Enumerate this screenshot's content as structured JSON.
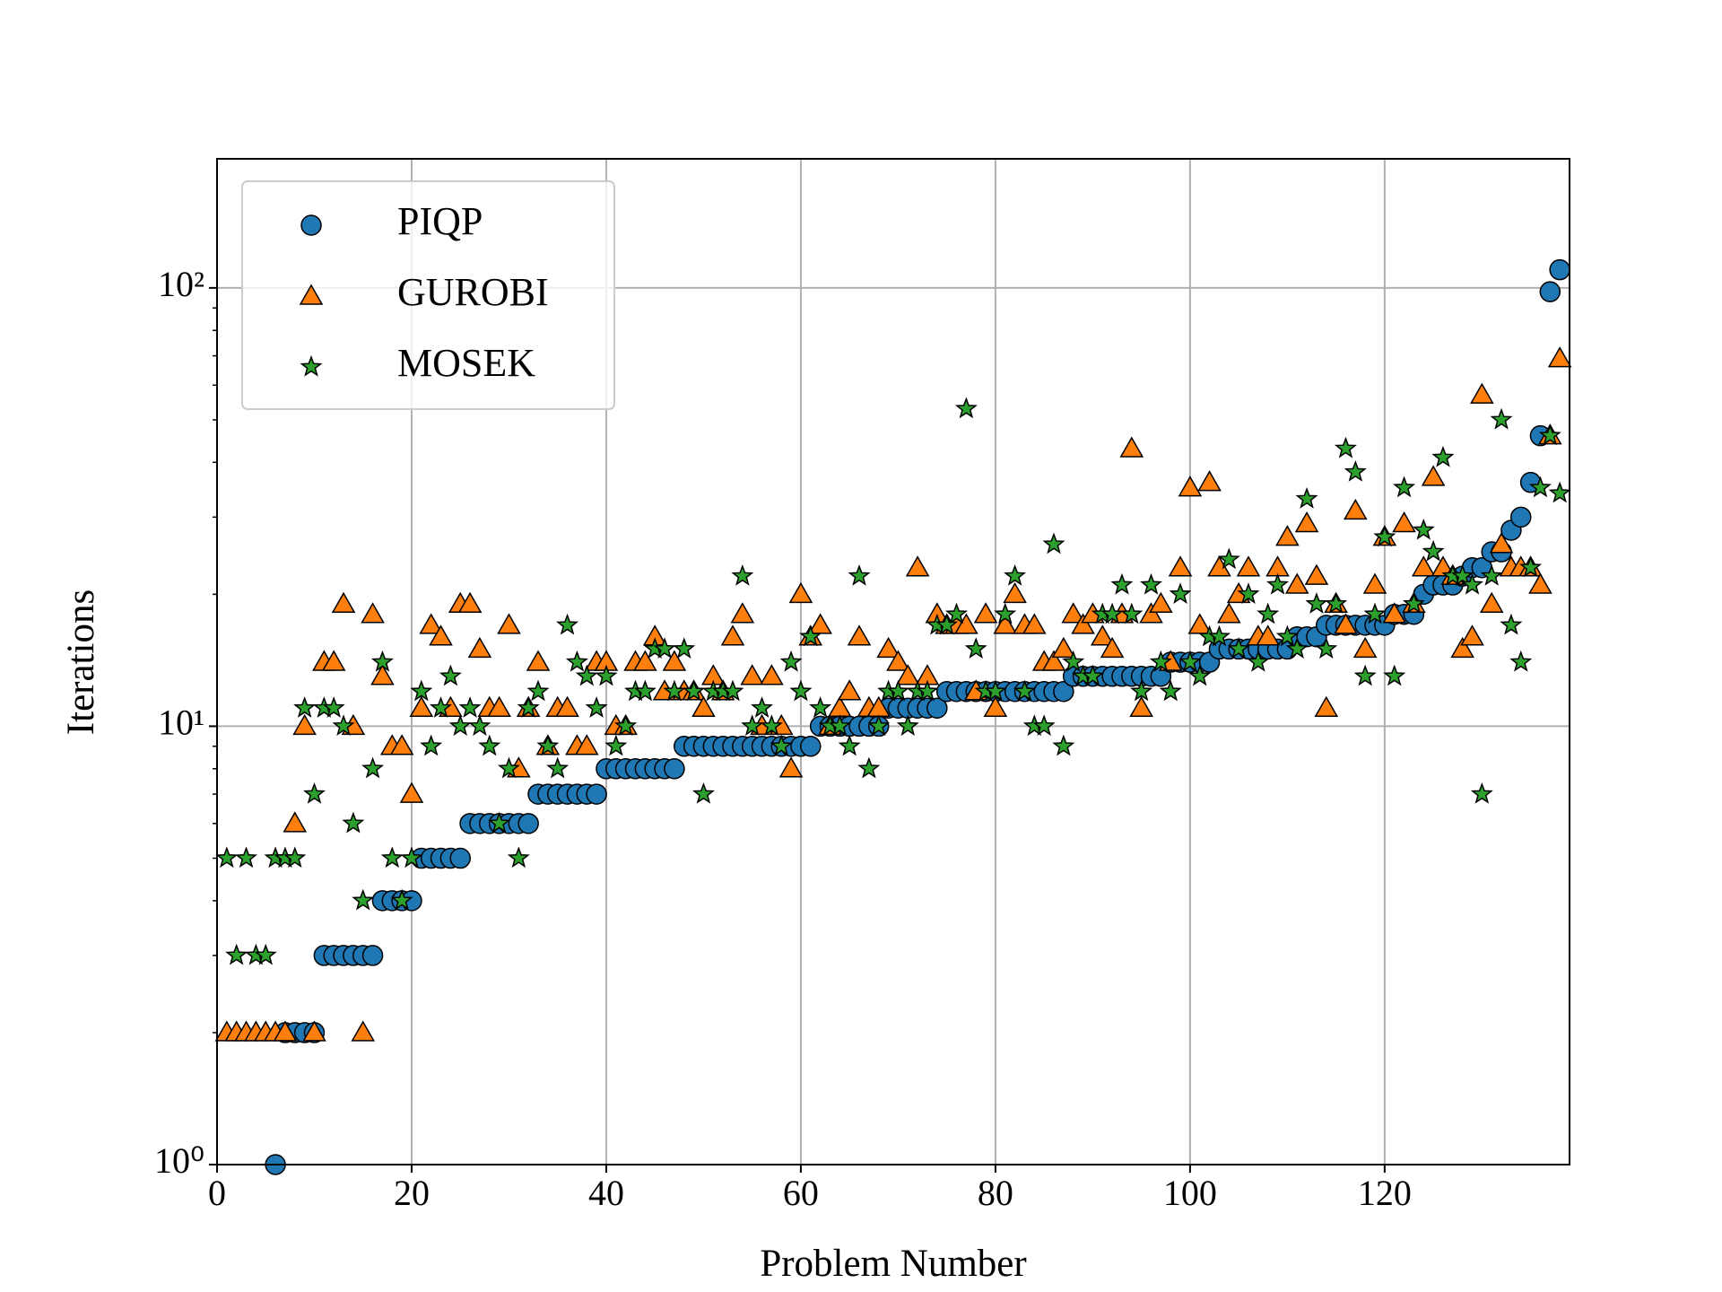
{
  "chart_data": {
    "type": "scatter",
    "xlabel": "Problem Number",
    "ylabel": "Iterations",
    "x": [
      1,
      2,
      3,
      4,
      5,
      6,
      7,
      8,
      9,
      10,
      11,
      12,
      13,
      14,
      15,
      16,
      17,
      18,
      19,
      20,
      21,
      22,
      23,
      24,
      25,
      26,
      27,
      28,
      29,
      30,
      31,
      32,
      33,
      34,
      35,
      36,
      37,
      38,
      39,
      40,
      41,
      42,
      43,
      44,
      45,
      46,
      47,
      48,
      49,
      50,
      51,
      52,
      53,
      54,
      55,
      56,
      57,
      58,
      59,
      60,
      61,
      62,
      63,
      64,
      65,
      66,
      67,
      68,
      69,
      70,
      71,
      72,
      73,
      74,
      75,
      76,
      77,
      78,
      79,
      80,
      81,
      82,
      83,
      84,
      85,
      86,
      87,
      88,
      89,
      90,
      91,
      92,
      93,
      94,
      95,
      96,
      97,
      98,
      99,
      100,
      101,
      102,
      103,
      104,
      105,
      106,
      107,
      108,
      109,
      110,
      111,
      112,
      113,
      114,
      115,
      116,
      117,
      118,
      119,
      120,
      121,
      122,
      123,
      124,
      125,
      126,
      127,
      128,
      129,
      130,
      131,
      132,
      133,
      134,
      135,
      136,
      137,
      138
    ],
    "series": [
      {
        "name": "PIQP",
        "color": "#1f77b4",
        "marker": "circle",
        "values": [
          null,
          null,
          null,
          null,
          null,
          1,
          2,
          2,
          2,
          2,
          3,
          3,
          3,
          3,
          3,
          3,
          4,
          4,
          4,
          4,
          5,
          5,
          5,
          5,
          5,
          6,
          6,
          6,
          6,
          6,
          6,
          6,
          7,
          7,
          7,
          7,
          7,
          7,
          7,
          8,
          8,
          8,
          8,
          8,
          8,
          8,
          8,
          9,
          9,
          9,
          9,
          9,
          9,
          9,
          9,
          9,
          9,
          9,
          9,
          9,
          9,
          10,
          10,
          10,
          10,
          10,
          10,
          10,
          11,
          11,
          11,
          11,
          11,
          11,
          12,
          12,
          12,
          12,
          12,
          12,
          12,
          12,
          12,
          12,
          12,
          12,
          12,
          13,
          13,
          13,
          13,
          13,
          13,
          13,
          13,
          13,
          13,
          14,
          14,
          14,
          14,
          14,
          15,
          15,
          15,
          15,
          15,
          15,
          15,
          15,
          16,
          16,
          16,
          17,
          17,
          17,
          17,
          17,
          17,
          17,
          18,
          18,
          18,
          20,
          21,
          21,
          21,
          22,
          23,
          23,
          25,
          25,
          28,
          30,
          36,
          46,
          98,
          110
        ]
      },
      {
        "name": "GUROBI",
        "color": "#ff7f0e",
        "marker": "triangle",
        "values": [
          2,
          2,
          2,
          2,
          2,
          2,
          2,
          6,
          10,
          2,
          14,
          14,
          19,
          10,
          2,
          18,
          13,
          9,
          9,
          7,
          11,
          17,
          16,
          11,
          19,
          19,
          15,
          11,
          11,
          17,
          8,
          11,
          14,
          9,
          11,
          11,
          9,
          9,
          14,
          14,
          10,
          10,
          14,
          14,
          16,
          12,
          14,
          12,
          12,
          11,
          13,
          12,
          16,
          18,
          13,
          10,
          13,
          10,
          8,
          20,
          16,
          17,
          10,
          11,
          12,
          16,
          11,
          11,
          15,
          14,
          13,
          23,
          13,
          18,
          17,
          17,
          17,
          12,
          18,
          11,
          17,
          20,
          17,
          17,
          14,
          14,
          15,
          18,
          17,
          18,
          16,
          15,
          18,
          43,
          11,
          18,
          19,
          14,
          23,
          35,
          17,
          36,
          23,
          18,
          20,
          23,
          16,
          16,
          23,
          27,
          21,
          29,
          22,
          11,
          19,
          17,
          31,
          15,
          21,
          27,
          18,
          29,
          19,
          23,
          37,
          23,
          22,
          15,
          16,
          57,
          19,
          26,
          23,
          23,
          23,
          21,
          46,
          69
        ]
      },
      {
        "name": "MOSEK",
        "color": "#2ca02c",
        "marker": "star",
        "values": [
          5,
          3,
          5,
          3,
          3,
          5,
          5,
          5,
          11,
          7,
          11,
          11,
          10,
          6,
          4,
          8,
          14,
          5,
          4,
          5,
          12,
          9,
          11,
          13,
          10,
          11,
          10,
          9,
          6,
          8,
          5,
          11,
          12,
          9,
          8,
          17,
          14,
          13,
          11,
          13,
          9,
          10,
          12,
          12,
          15,
          15,
          12,
          15,
          12,
          7,
          12,
          12,
          12,
          22,
          10,
          11,
          10,
          9,
          14,
          12,
          16,
          11,
          10,
          10,
          9,
          22,
          8,
          10,
          12,
          12,
          10,
          12,
          12,
          17,
          17,
          18,
          53,
          15,
          12,
          12,
          18,
          22,
          12,
          10,
          10,
          26,
          9,
          14,
          13,
          13,
          18,
          18,
          21,
          18,
          12,
          21,
          14,
          12,
          20,
          14,
          13,
          16,
          16,
          24,
          15,
          20,
          14,
          18,
          21,
          16,
          15,
          33,
          19,
          15,
          19,
          43,
          38,
          13,
          18,
          27,
          13,
          35,
          19,
          28,
          25,
          41,
          22,
          22,
          21,
          7,
          22,
          50,
          17,
          14,
          23,
          35,
          46,
          34
        ]
      }
    ],
    "xlim": [
      0,
      139
    ],
    "xticks": [
      0,
      20,
      40,
      60,
      80,
      100,
      120
    ],
    "ylim": [
      1,
      197
    ],
    "ylog": true,
    "yticks": [
      {
        "value": 1,
        "label": "10⁰"
      },
      {
        "value": 10,
        "label": "10¹"
      },
      {
        "value": 100,
        "label": "10²"
      }
    ],
    "yminorticks": [
      2,
      3,
      4,
      5,
      6,
      7,
      8,
      9,
      20,
      30,
      40,
      50,
      60,
      70,
      80,
      90
    ],
    "grid": true,
    "legend": "upper left"
  }
}
